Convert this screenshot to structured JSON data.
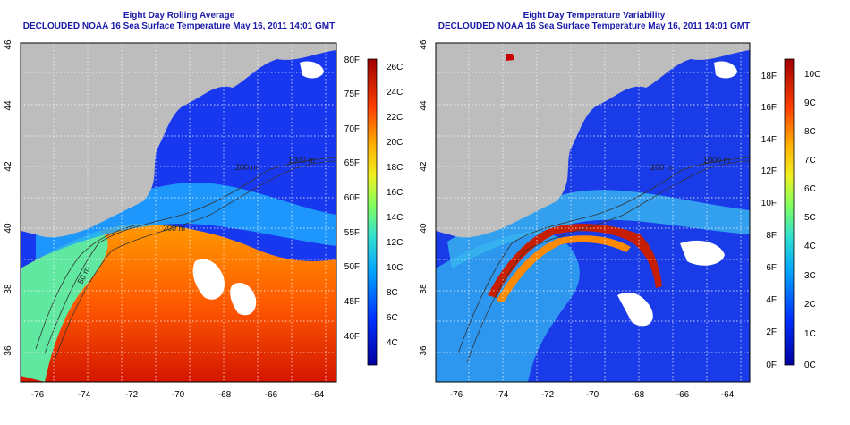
{
  "panels": [
    {
      "title_line1": "Eight Day Rolling Average",
      "title_line2": "DECLOUDED NOAA 16 Sea Surface Temperature May 16, 2011 14:01 GMT",
      "colorbar": {
        "f_labels": [
          "80F",
          "75F",
          "70F",
          "65F",
          "60F",
          "55F",
          "50F",
          "45F",
          "40F"
        ],
        "c_labels": [
          "26C",
          "24C",
          "22C",
          "20C",
          "18C",
          "16C",
          "14C",
          "12C",
          "10C",
          "8C",
          "6C",
          "4C"
        ]
      },
      "contour_labels": [
        "200 m",
        "1000 m",
        "200 m",
        "50 m"
      ]
    },
    {
      "title_line1": "Eight Day Temperature Variability",
      "title_line2": "DECLOUDED NOAA 16 Sea Surface Temperature May 16, 2011 14:01 GMT",
      "colorbar": {
        "f_labels": [
          "18F",
          "16F",
          "14F",
          "12F",
          "10F",
          "8F",
          "6F",
          "4F",
          "2F",
          "0F"
        ],
        "c_labels": [
          "10C",
          "9C",
          "8C",
          "7C",
          "6C",
          "5C",
          "4C",
          "3C",
          "2C",
          "1C",
          "0C"
        ]
      },
      "contour_labels": [
        "200 m",
        "1000 m"
      ]
    }
  ],
  "axes": {
    "x_ticks": [
      "-76",
      "-74",
      "-72",
      "-70",
      "-68",
      "-66",
      "-64"
    ],
    "y_ticks": [
      "46",
      "44",
      "42",
      "40",
      "38",
      "36"
    ]
  },
  "colors": {
    "land": "#bdbdbd",
    "title": "#1a1aa8",
    "cloud_mask": "#ffffff"
  }
}
